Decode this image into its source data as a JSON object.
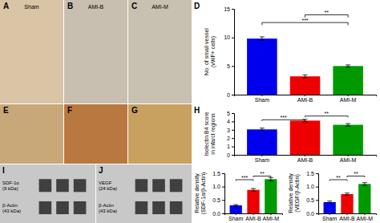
{
  "chart_data": [
    {
      "type": "image",
      "title": "A",
      "subtitle": "Sham",
      "color": "#d9c4a5"
    },
    {
      "type": "image",
      "title": "B",
      "subtitle": "AMI-B",
      "color": "#c8bfb0"
    },
    {
      "type": "image",
      "title": "C",
      "subtitle": "AMI-M",
      "color": "#c8c0b0"
    },
    {
      "type": "image",
      "title": "E",
      "color": "#c8a878"
    },
    {
      "type": "image",
      "title": "F",
      "color": "#b87840"
    },
    {
      "type": "image",
      "title": "G",
      "color": "#c8a060"
    },
    {
      "type": "blot",
      "title": "I",
      "annotations": [
        "SDF-1α\n(9 kDa)",
        "β-Actin\n(43 kDa)"
      ],
      "color": "#404040"
    },
    {
      "type": "blot",
      "title": "J",
      "annotations": [
        "VEGF\n(24 kDa)",
        "β-Actin\n(43 kDa)"
      ],
      "color": "#404040"
    },
    {
      "type": "bar",
      "title": "D",
      "categories": [
        "Sham",
        "AMI-B",
        "AMI-M"
      ],
      "values": [
        9.8,
        3.2,
        5.0
      ],
      "errors": [
        0.3,
        0.25,
        0.2
      ],
      "colors": [
        "#0000ee",
        "#ee0000",
        "#009900"
      ],
      "ylabel": "No. of small vessel\n(vWF+ cells)",
      "ylim": [
        0,
        15
      ],
      "yticks": [
        0,
        5,
        10,
        15
      ],
      "annotations": [
        {
          "text": "***",
          "from": "Sham",
          "to": "AMI-M"
        },
        {
          "text": "**",
          "from": "AMI-B",
          "to": "AMI-M"
        }
      ]
    },
    {
      "type": "bar",
      "title": "H",
      "categories": [
        "Sham",
        "AMI-B",
        "AMI-M"
      ],
      "values": [
        3.05,
        4.1,
        3.6
      ],
      "errors": [
        0.15,
        0.15,
        0.15
      ],
      "colors": [
        "#0000ee",
        "#ee0000",
        "#009900"
      ],
      "ylabel": "Isolectin B4 score\nin infarct regions",
      "ylim": [
        0,
        5
      ],
      "yticks": [
        0,
        1,
        2,
        3,
        4,
        5
      ],
      "annotations": [
        {
          "text": "***",
          "from": "Sham",
          "to": "AMI-B"
        },
        {
          "text": "**",
          "from": "AMI-B",
          "to": "AMI-M"
        }
      ]
    },
    {
      "type": "bar",
      "categories": [
        "Sham",
        "AMI-B",
        "AMI-M"
      ],
      "values": [
        0.3,
        0.88,
        1.28
      ],
      "errors": [
        0.03,
        0.05,
        0.06
      ],
      "colors": [
        "#0000ee",
        "#ee0000",
        "#009900"
      ],
      "ylabel": "Relative density\n(SDF-1α/β-Actin)",
      "ylim": [
        0,
        1.5
      ],
      "yticks": [
        {
          "value": 0,
          "label": "0.0"
        },
        0.5,
        {
          "value": 1,
          "label": "1.0"
        },
        1.5
      ],
      "annotations": [
        {
          "text": "***",
          "from": "Sham",
          "to": "AMI-B"
        },
        {
          "text": "**",
          "from": "AMI-B",
          "to": "AMI-M"
        }
      ]
    },
    {
      "type": "bar",
      "categories": [
        "Sham",
        "AMI-B",
        "AMI-M"
      ],
      "values": [
        0.42,
        0.72,
        1.1
      ],
      "errors": [
        0.04,
        0.04,
        0.05
      ],
      "colors": [
        "#0000ee",
        "#ee0000",
        "#009900"
      ],
      "ylabel": "Relative density\n(VEGF/β-Actin)",
      "ylim": [
        0,
        1.5
      ],
      "yticks": [
        {
          "value": 0,
          "label": "0.0"
        },
        0.5,
        {
          "value": 1,
          "label": "1.0"
        },
        1.5
      ],
      "annotations": [
        {
          "text": "**",
          "from": "Sham",
          "to": "AMI-B"
        },
        {
          "text": "**",
          "from": "AMI-B",
          "to": "AMI-M"
        }
      ]
    }
  ]
}
